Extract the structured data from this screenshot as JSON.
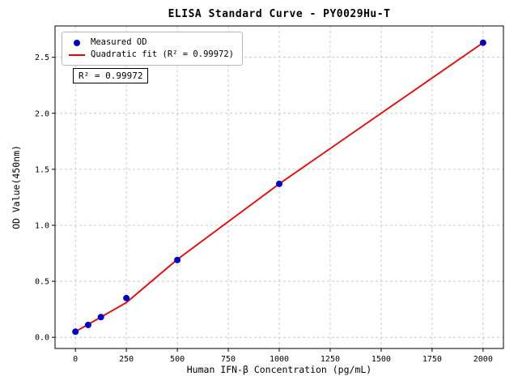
{
  "chart_data": {
    "type": "scatter",
    "title": "ELISA Standard Curve - PY0029Hu-T",
    "xlabel": "Human IFN-β Concentration (pg/mL)",
    "ylabel": "OD Value(450nm)",
    "xlim": [
      -100,
      2100
    ],
    "ylim": [
      -0.1,
      2.78
    ],
    "xticks": [
      0,
      250,
      500,
      750,
      1000,
      1250,
      1500,
      1750,
      2000
    ],
    "yticks": [
      0.0,
      0.5,
      1.0,
      1.5,
      2.0,
      2.5
    ],
    "grid": true,
    "legend": {
      "position": "upper-left",
      "entries": [
        "Measured OD",
        "Quadratic fit (R² = 0.99972)"
      ]
    },
    "annotation": "R² = 0.99972",
    "series": [
      {
        "name": "Measured OD",
        "kind": "scatter",
        "x": [
          0,
          62.5,
          125,
          250,
          500,
          1000,
          2000
        ],
        "y": [
          0.05,
          0.11,
          0.18,
          0.35,
          0.69,
          1.37,
          2.63
        ]
      },
      {
        "name": "Quadratic fit",
        "kind": "line",
        "r_squared": 0.99972,
        "x": [
          0,
          62.5,
          125,
          250,
          500,
          1000,
          1500,
          2000
        ],
        "y": [
          0.05,
          0.115,
          0.18,
          0.31,
          0.695,
          1.37,
          2.0,
          2.63
        ]
      }
    ],
    "colors": {
      "points": "#0000cd",
      "fit": "#ee0000",
      "grid": "#bdbdbd"
    }
  }
}
